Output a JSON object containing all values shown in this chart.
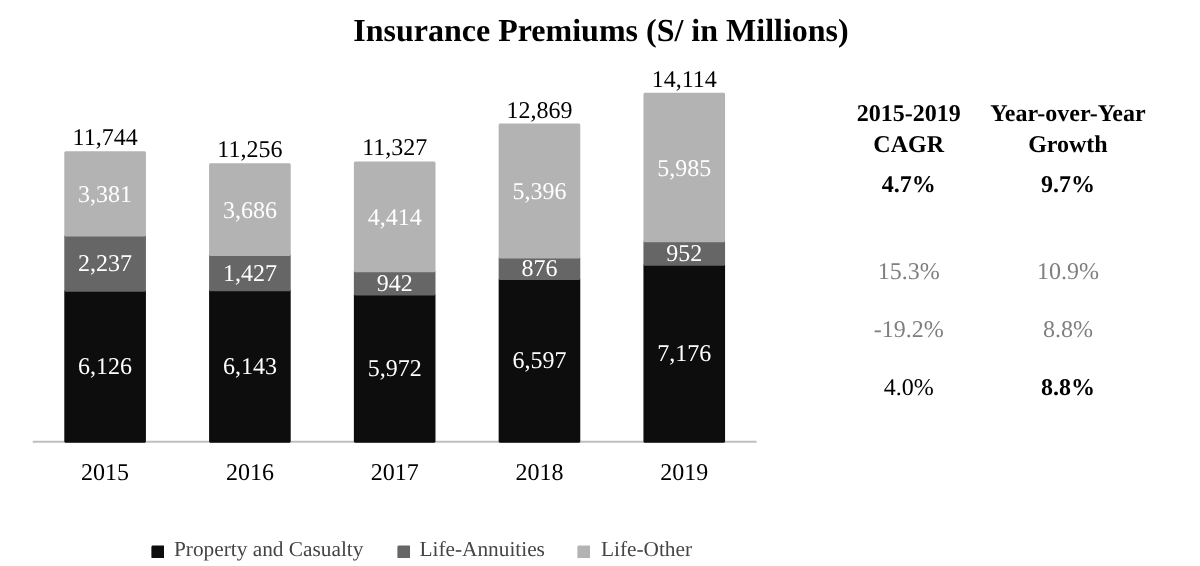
{
  "chart_data": [
    {
      "type": "bar",
      "title": "Insurance Premiums (S/ in Millions)",
      "categories": [
        "2015",
        "2016",
        "2017",
        "2018",
        "2019"
      ],
      "stacked": true,
      "legend": "bottom",
      "series": [
        {
          "name": "Property and Casualty",
          "color": "#0d0d0d",
          "values": [
            6126,
            6143,
            5972,
            6597,
            7176
          ],
          "value_labels": [
            "6,126",
            "6,143",
            "5,972",
            "6,597",
            "7,176"
          ]
        },
        {
          "name": "Life-Annuities",
          "color": "#666666",
          "values": [
            2237,
            1427,
            942,
            876,
            952
          ],
          "value_labels": [
            "2,237",
            "1,427",
            "942",
            "876",
            "952"
          ]
        },
        {
          "name": "Life-Other",
          "color": "#b3b3b3",
          "values": [
            3381,
            3686,
            4414,
            5396,
            5985
          ],
          "value_labels": [
            "3,381",
            "3,686",
            "4,414",
            "5,396",
            "5,985"
          ]
        }
      ],
      "totals": [
        "11,744",
        "11,256",
        "11,327",
        "12,869",
        "14,114"
      ]
    },
    {
      "type": "other",
      "annotations": [
        "2015-2019\nCAGR",
        "Year-over-Year\nGrowth",
        "4.7%",
        "9.7%",
        "15.3%",
        "10.9%",
        "-19.2%",
        "8.8%",
        "4.0%",
        "8.8%"
      ]
    }
  ]
}
